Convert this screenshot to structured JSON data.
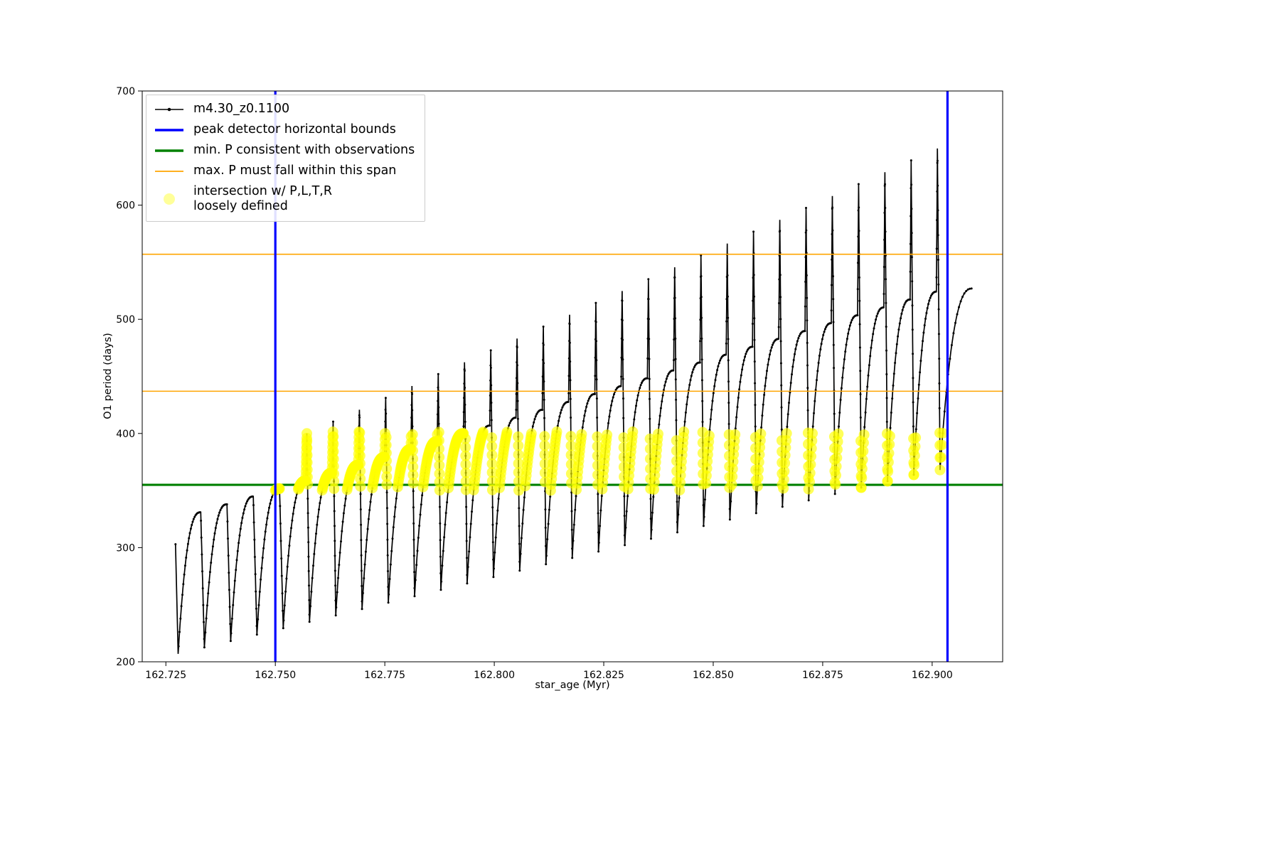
{
  "chart_data": {
    "type": "line",
    "title": "",
    "xlabel": "star_age (Myr)",
    "ylabel": "O1 period (days)",
    "xlim": [
      162.7196,
      162.9161
    ],
    "ylim": [
      200,
      700
    ],
    "grid": false,
    "legend_position": "upper-left",
    "xticks": [
      {
        "v": 162.725,
        "label": "162.725"
      },
      {
        "v": 162.75,
        "label": "162.750"
      },
      {
        "v": 162.775,
        "label": "162.775"
      },
      {
        "v": 162.8,
        "label": "162.800"
      },
      {
        "v": 162.825,
        "label": "162.825"
      },
      {
        "v": 162.85,
        "label": "162.850"
      },
      {
        "v": 162.875,
        "label": "162.875"
      },
      {
        "v": 162.9,
        "label": "162.900"
      }
    ],
    "yticks": [
      {
        "v": 200,
        "label": "200"
      },
      {
        "v": 300,
        "label": "300"
      },
      {
        "v": 400,
        "label": "400"
      },
      {
        "v": 500,
        "label": "500"
      },
      {
        "v": 600,
        "label": "600"
      },
      {
        "v": 700,
        "label": "700"
      }
    ],
    "legend": [
      {
        "label": "m4.30_z0.1100",
        "kind": "line-marker",
        "color": "#000000"
      },
      {
        "label": "peak detector horizontal bounds",
        "kind": "line",
        "color": "#0000ff"
      },
      {
        "label": "min. P consistent with observations",
        "kind": "line",
        "color": "#008000"
      },
      {
        "label": "max. P must fall within this span",
        "kind": "line",
        "color": "#ffa500"
      },
      {
        "label": "intersection w/ P,L,T,R\nloosely defined",
        "kind": "marker",
        "color": "#ffff00"
      }
    ],
    "series_name": "m4.30_z0.1100",
    "series_color": "#000000",
    "bounds_vlines": {
      "color": "#0000ff",
      "xs": [
        162.75,
        162.9035
      ]
    },
    "min_period_hline": {
      "color": "#008000",
      "y": 355
    },
    "max_span_hlines": {
      "color": "#ffa500",
      "ys": [
        437,
        557
      ]
    },
    "intersection_band": {
      "color": "#ffff00",
      "y_range": [
        350,
        402
      ],
      "x_range": [
        162.748,
        162.9045
      ]
    },
    "curve": {
      "arc_exponent": 2.6,
      "start_tail": {
        "x": 162.7272,
        "y": 303
      },
      "cycles": [
        {
          "x0": 162.7278,
          "w": 0.006,
          "min": 207.0,
          "top": 331.0,
          "spike": null
        },
        {
          "x0": 162.7338,
          "w": 0.006,
          "min": 212.6,
          "top": 337.9,
          "spike": null
        },
        {
          "x0": 162.7398,
          "w": 0.006,
          "min": 218.2,
          "top": 344.8,
          "spike": null
        },
        {
          "x0": 162.7458,
          "w": 0.006,
          "min": 223.8,
          "top": 351.7,
          "spike": null
        },
        {
          "x0": 162.7518,
          "w": 0.006,
          "min": 229.4,
          "top": 358.6,
          "spike": 400.0
        },
        {
          "x0": 162.7578,
          "w": 0.006,
          "min": 235.0,
          "top": 365.5,
          "spike": 410.4
        },
        {
          "x0": 162.7638,
          "w": 0.006,
          "min": 240.6,
          "top": 372.4,
          "spike": 420.8
        },
        {
          "x0": 162.7698,
          "w": 0.006,
          "min": 246.2,
          "top": 379.3,
          "spike": 431.2
        },
        {
          "x0": 162.7758,
          "w": 0.006,
          "min": 251.8,
          "top": 386.2,
          "spike": 441.6
        },
        {
          "x0": 162.7818,
          "w": 0.006,
          "min": 257.4,
          "top": 393.1,
          "spike": 452.0
        },
        {
          "x0": 162.7878,
          "w": 0.006,
          "min": 263.0,
          "top": 400.0,
          "spike": 462.4
        },
        {
          "x0": 162.7938,
          "w": 0.006,
          "min": 268.6,
          "top": 406.9,
          "spike": 472.8
        },
        {
          "x0": 162.7998,
          "w": 0.006,
          "min": 274.2,
          "top": 413.8,
          "spike": 483.2
        },
        {
          "x0": 162.8058,
          "w": 0.006,
          "min": 279.8,
          "top": 420.7,
          "spike": 493.6
        },
        {
          "x0": 162.8118,
          "w": 0.006,
          "min": 285.4,
          "top": 427.6,
          "spike": 504.0
        },
        {
          "x0": 162.8178,
          "w": 0.006,
          "min": 291.0,
          "top": 434.5,
          "spike": 514.4
        },
        {
          "x0": 162.8238,
          "w": 0.006,
          "min": 296.6,
          "top": 441.4,
          "spike": 524.8
        },
        {
          "x0": 162.8298,
          "w": 0.006,
          "min": 302.2,
          "top": 448.3,
          "spike": 535.2
        },
        {
          "x0": 162.8358,
          "w": 0.006,
          "min": 307.8,
          "top": 455.2,
          "spike": 545.6
        },
        {
          "x0": 162.8418,
          "w": 0.006,
          "min": 313.4,
          "top": 462.1,
          "spike": 556.0
        },
        {
          "x0": 162.8478,
          "w": 0.006,
          "min": 319.0,
          "top": 469.0,
          "spike": 566.4
        },
        {
          "x0": 162.8538,
          "w": 0.006,
          "min": 324.6,
          "top": 475.9,
          "spike": 576.8
        },
        {
          "x0": 162.8598,
          "w": 0.006,
          "min": 330.2,
          "top": 482.8,
          "spike": 587.2
        },
        {
          "x0": 162.8658,
          "w": 0.006,
          "min": 335.8,
          "top": 489.7,
          "spike": 597.6
        },
        {
          "x0": 162.8718,
          "w": 0.006,
          "min": 341.4,
          "top": 496.6,
          "spike": 608.0
        },
        {
          "x0": 162.8778,
          "w": 0.006,
          "min": 347.0,
          "top": 503.5,
          "spike": 618.4
        },
        {
          "x0": 162.8838,
          "w": 0.006,
          "min": 352.6,
          "top": 510.4,
          "spike": 628.8
        },
        {
          "x0": 162.8898,
          "w": 0.006,
          "min": 358.2,
          "top": 517.3,
          "spike": 639.2
        },
        {
          "x0": 162.8958,
          "w": 0.006,
          "min": 363.8,
          "top": 524.2,
          "spike": 649.6
        }
      ],
      "end_tail": {
        "x1": 162.9018,
        "y1": 368,
        "x2": 162.9092,
        "top": 527
      }
    }
  }
}
